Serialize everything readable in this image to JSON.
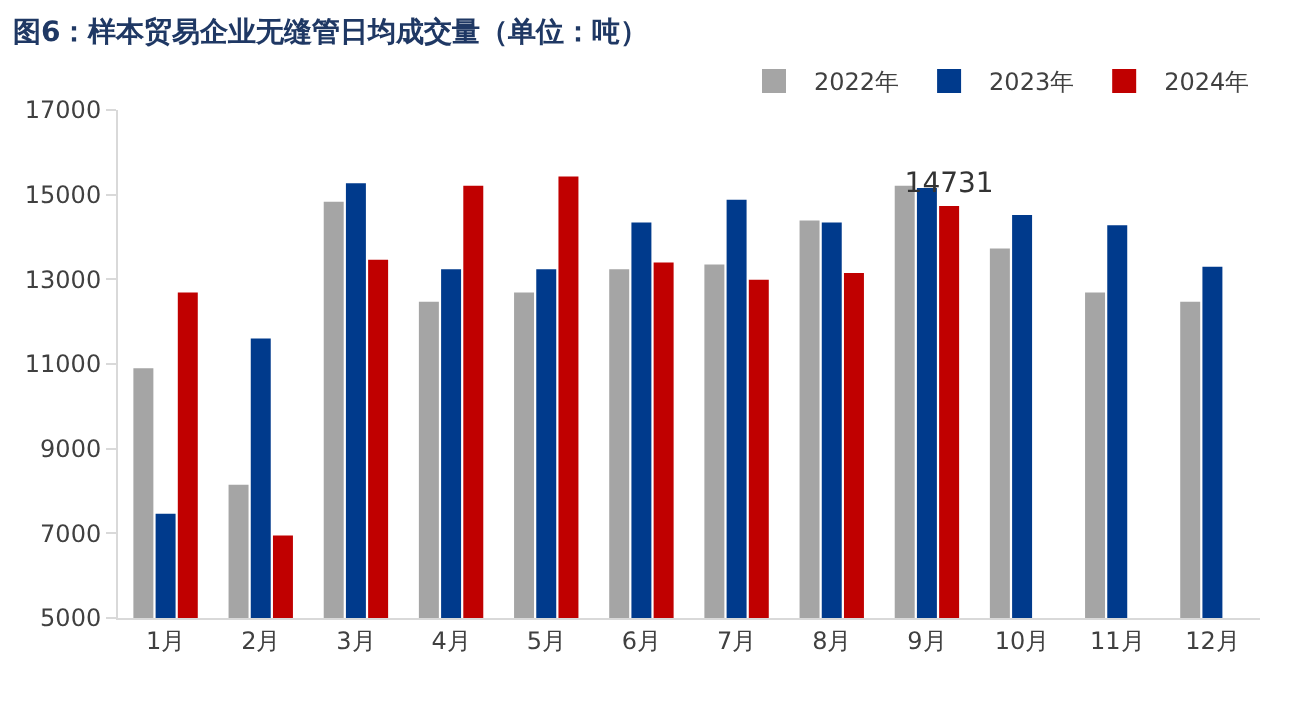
{
  "chart_data": {
    "type": "bar",
    "title": "图6：样本贸易企业无缝管日均成交量（单位：吨）",
    "categories": [
      "1月",
      "2月",
      "3月",
      "4月",
      "5月",
      "6月",
      "7月",
      "8月",
      "9月",
      "10月",
      "11月",
      "12月"
    ],
    "series": [
      {
        "name": "2022年",
        "color": "#a5a5a5",
        "values": [
          10900,
          8150,
          14830,
          12470,
          12690,
          13240,
          13350,
          14390,
          15210,
          13730,
          12690,
          12470
        ]
      },
      {
        "name": "2023年",
        "color": "#003a8c",
        "values": [
          7460,
          11600,
          15270,
          13240,
          13240,
          14340,
          14880,
          14340,
          15160,
          14520,
          14280,
          13300
        ]
      },
      {
        "name": "2024年",
        "color": "#c00000",
        "values": [
          12690,
          6950,
          13460,
          15210,
          15430,
          13400,
          12990,
          13150,
          14731,
          null,
          null,
          null
        ],
        "value_labels": [
          null,
          null,
          null,
          null,
          null,
          null,
          null,
          null,
          "14731",
          null,
          null,
          null
        ]
      }
    ],
    "ylim": [
      5000,
      17000
    ],
    "yticks": [
      5000,
      7000,
      9000,
      11000,
      13000,
      15000,
      17000
    ],
    "grid": false,
    "legend": "top right"
  }
}
